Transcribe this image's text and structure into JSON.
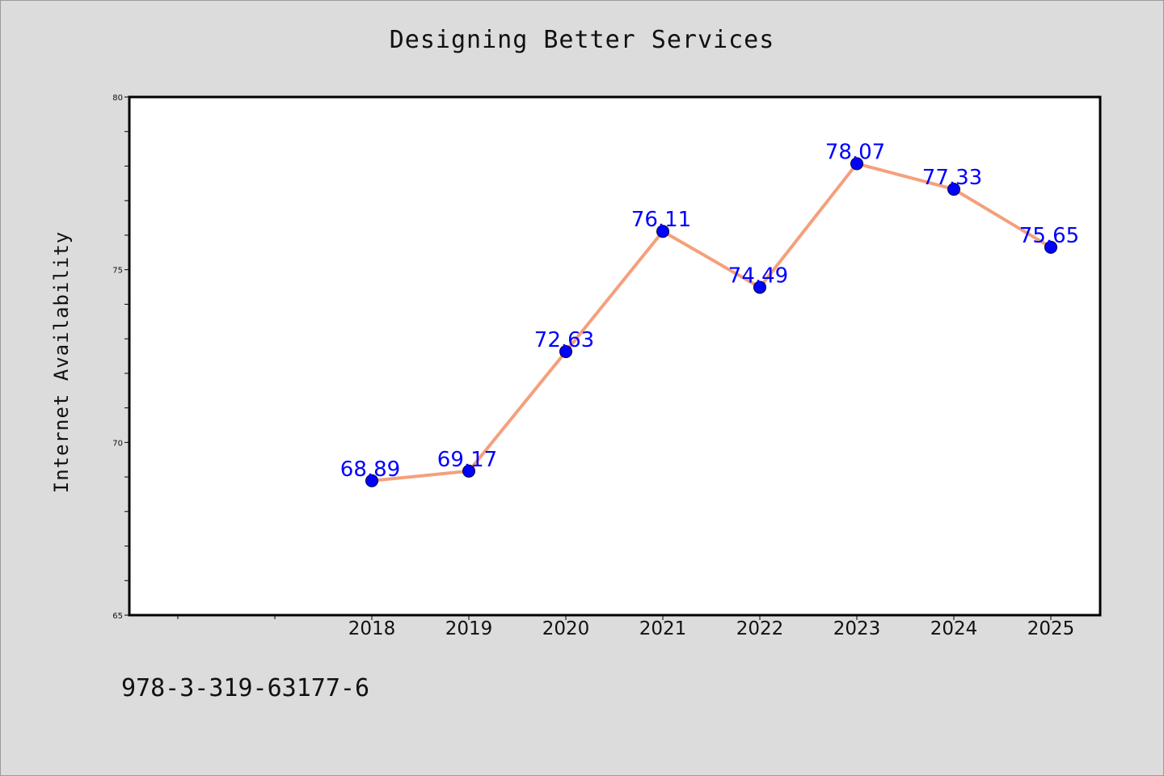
{
  "chart_data": {
    "type": "line",
    "title": "Designing Better Services",
    "xlabel": "",
    "ylabel": "Internet Availability",
    "x": [
      "2018",
      "2019",
      "2020",
      "2021",
      "2022",
      "2023",
      "2024",
      "2025"
    ],
    "series": [
      {
        "values": [
          68.89,
          69.17,
          72.63,
          76.11,
          74.49,
          78.07,
          77.33,
          75.65
        ],
        "line_color": "#f4a07c",
        "marker_color": "#0000ff"
      }
    ],
    "data_labels": [
      "68.89",
      "69.17",
      "72.63",
      "76.11",
      "74.49",
      "78.07",
      "77.33",
      "75.65"
    ],
    "y_ticks": [
      "65",
      "70",
      "75",
      "80"
    ],
    "ylim": [
      65,
      80
    ],
    "grid": false,
    "label_color": "#0000ff"
  },
  "footnote": "978-3-319-63177-6"
}
